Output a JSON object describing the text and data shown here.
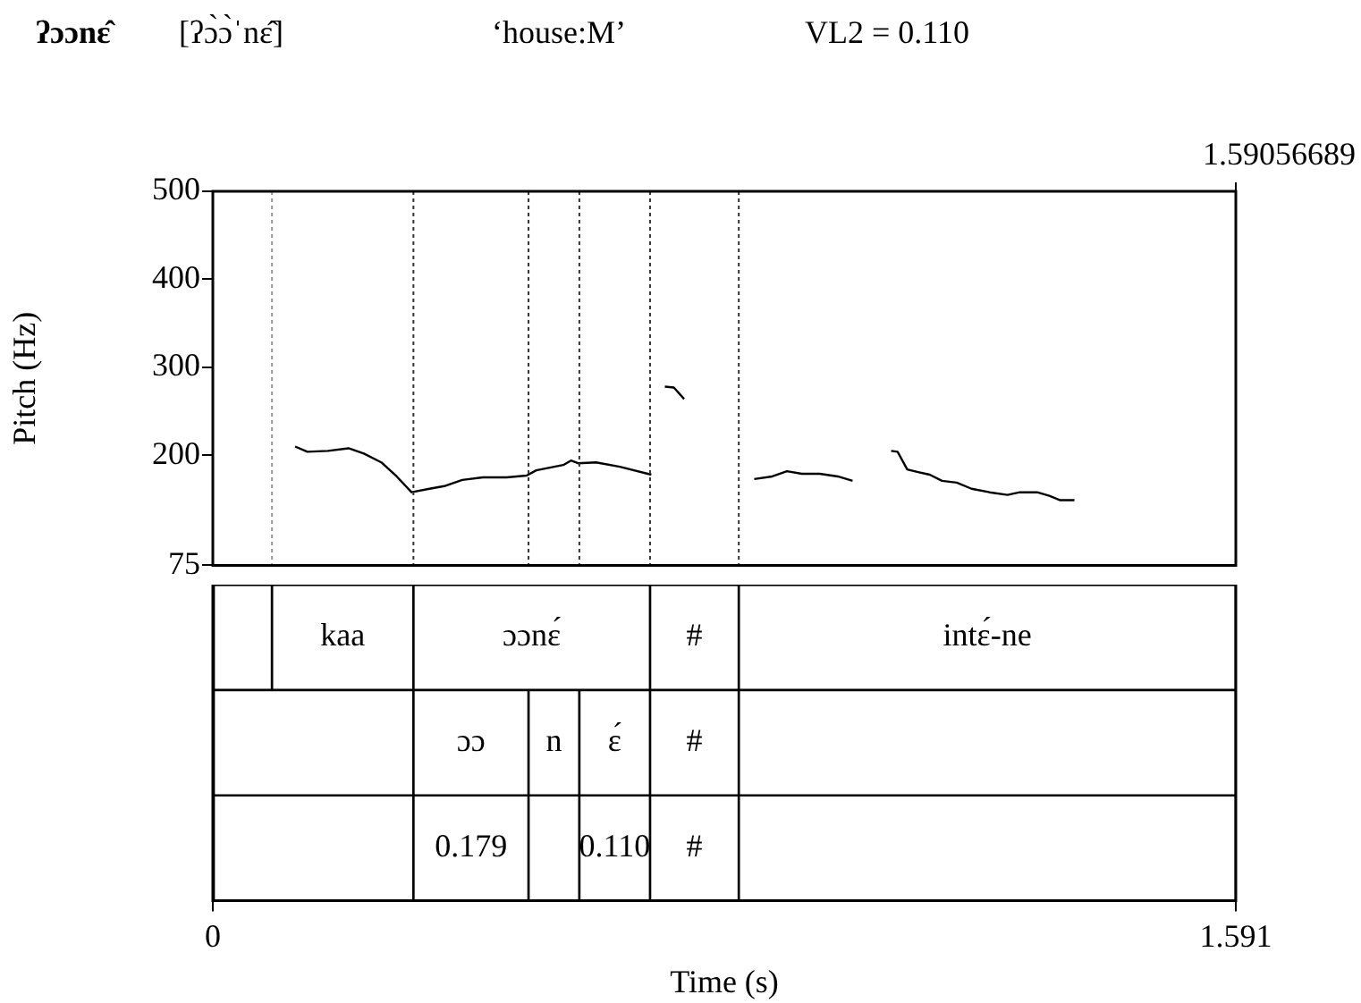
{
  "chart_data": [
    {
      "type": "line",
      "title": "ʔɔɔnɛ̂",
      "annotations": [
        "[ʔɔ̀ɔ̀ˈnɛ̂]",
        "‘house:M’",
        "VL2 = 0.110",
        "1.59056689"
      ],
      "ylabel": "Pitch (Hz)",
      "xlim": [
        0,
        1.591
      ],
      "ylim": [
        75,
        500
      ],
      "yticks": [
        75,
        200,
        300,
        400,
        500
      ],
      "marker": "none",
      "tick_labels": "y",
      "ref_lines": [
        {
          "axis": "x",
          "value": 0.092,
          "color": "#999999",
          "line_style": "dotted"
        },
        {
          "axis": "x",
          "value": 0.312,
          "color": "#333333",
          "line_style": "dotted"
        },
        {
          "axis": "x",
          "value": 0.491,
          "color": "#333333",
          "line_style": "dotted"
        },
        {
          "axis": "x",
          "value": 0.57,
          "color": "#333333",
          "line_style": "dotted"
        },
        {
          "axis": "x",
          "value": 0.68,
          "color": "#333333",
          "line_style": "dotted"
        },
        {
          "axis": "x",
          "value": 0.818,
          "color": "#333333",
          "line_style": "dotted"
        }
      ],
      "series": [
        {
          "color": "#000000",
          "x": [
            0.128,
            0.147,
            0.179,
            0.211,
            0.235,
            0.262,
            0.286,
            0.309,
            0.337,
            0.36,
            0.388,
            0.42,
            0.457,
            0.488,
            0.503,
            0.545,
            0.557,
            0.568,
            0.596,
            0.633,
            0.682,
            0.69,
            0.703,
            0.717,
            0.733,
            0.79,
            0.842,
            0.87,
            0.893,
            0.916,
            0.944,
            0.972,
            0.995,
            1.02,
            1.055,
            1.065,
            1.08,
            1.097,
            1.115,
            1.134,
            1.157,
            1.18,
            1.208,
            1.236,
            1.255,
            1.282,
            1.301,
            1.318,
            1.34
          ],
          "values": [
            210,
            204,
            205,
            208,
            202,
            192,
            176,
            158,
            162,
            165,
            172,
            175,
            175,
            177,
            183,
            189,
            194,
            191,
            192,
            187,
            178,
            null,
            278,
            277,
            264,
            null,
            173,
            176,
            182,
            179,
            179,
            176,
            171,
            null,
            205,
            204,
            184,
            181,
            178,
            171,
            169,
            162,
            158,
            155,
            158,
            158,
            154,
            149,
            149
          ]
        }
      ]
    },
    {
      "type": "bar",
      "orientation": "horizontal",
      "stacked": true,
      "categories": [
        null,
        null,
        null
      ],
      "xlim": [
        0,
        1.591
      ],
      "xticks": [
        0,
        1.591
      ],
      "xlabel": "Time (s)",
      "tick_labels": "x",
      "series": [
        {
          "color": "#ffffff",
          "values": [
            0.092,
            0.312,
            0.312
          ],
          "value_labels": [
            null,
            null,
            null
          ]
        },
        {
          "color": "#ffffff",
          "values": [
            0.22,
            0.179,
            0.179
          ],
          "value_labels": [
            "kaa",
            "ɔɔ",
            "0.179"
          ]
        },
        {
          "color": "#ffffff",
          "values": [
            0.368,
            0.079,
            0.079
          ],
          "value_labels": [
            "ɔɔnɛ́",
            "n",
            null
          ]
        },
        {
          "color": "#ffffff",
          "values": [
            0.138,
            0.11,
            0.11
          ],
          "value_labels": [
            "#",
            "ɛ́",
            "0.110"
          ]
        },
        {
          "color": "#ffffff",
          "values": [
            0.773,
            0.138,
            0.138
          ],
          "value_labels": [
            "intɛ́-ne",
            "#",
            "#"
          ]
        },
        {
          "color": "#ffffff",
          "values": [
            null,
            0.773,
            0.773
          ],
          "value_labels": [
            null,
            null,
            null
          ]
        }
      ]
    }
  ]
}
